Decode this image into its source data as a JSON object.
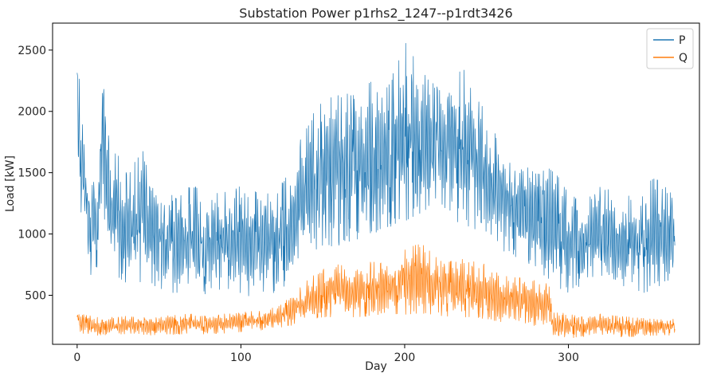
{
  "chart_data": {
    "type": "line",
    "title": "Substation Power p1rhs2_1247--p1rdt3426",
    "xlabel": "Day",
    "ylabel": "Load [kW]",
    "xlim": [
      -15,
      380
    ],
    "ylim": [
      100,
      2720
    ],
    "xticks": [
      0,
      100,
      200,
      300
    ],
    "yticks": [
      500,
      1000,
      1500,
      2000,
      2500
    ],
    "grid": false,
    "legend_position": "top-right",
    "series": [
      {
        "name": "P",
        "color": "#1f77b4",
        "envelope": {
          "x": [
            0,
            2,
            5,
            8,
            12,
            16,
            20,
            25,
            30,
            40,
            50,
            60,
            70,
            80,
            90,
            100,
            110,
            120,
            130,
            140,
            150,
            160,
            170,
            180,
            190,
            200,
            210,
            220,
            230,
            240,
            250,
            260,
            270,
            280,
            290,
            300,
            310,
            320,
            330,
            340,
            350,
            360,
            365
          ],
          "high": [
            2320,
            2300,
            1600,
            1480,
            1550,
            2430,
            1750,
            1650,
            1500,
            1700,
            1400,
            1300,
            1400,
            1350,
            1350,
            1400,
            1350,
            1350,
            1500,
            1950,
            2100,
            2150,
            2150,
            2250,
            2200,
            2580,
            2350,
            2200,
            2350,
            2350,
            1950,
            1700,
            1600,
            1500,
            1550,
            1350,
            1250,
            1450,
            1250,
            1350,
            1500,
            1400,
            1480
          ],
          "low": [
            1800,
            1200,
            1000,
            650,
            700,
            1200,
            700,
            650,
            600,
            600,
            550,
            500,
            550,
            500,
            550,
            500,
            450,
            520,
            600,
            800,
            900,
            900,
            950,
            1000,
            1050,
            1100,
            1150,
            1100,
            1100,
            1050,
            950,
            850,
            800,
            700,
            600,
            500,
            600,
            650,
            550,
            550,
            500,
            600,
            700
          ]
        }
      },
      {
        "name": "Q",
        "color": "#ff7f0e",
        "envelope": {
          "x": [
            0,
            2,
            5,
            10,
            20,
            30,
            40,
            50,
            60,
            70,
            80,
            90,
            100,
            110,
            120,
            130,
            140,
            150,
            160,
            170,
            180,
            190,
            200,
            210,
            220,
            230,
            240,
            250,
            260,
            270,
            280,
            288,
            290,
            300,
            310,
            320,
            330,
            340,
            350,
            360,
            365
          ],
          "high": [
            380,
            350,
            340,
            330,
            320,
            330,
            320,
            330,
            340,
            350,
            330,
            350,
            360,
            380,
            400,
            480,
            620,
            720,
            760,
            700,
            780,
            750,
            880,
            930,
            800,
            780,
            830,
            750,
            660,
            650,
            620,
            600,
            380,
            350,
            320,
            350,
            330,
            320,
            310,
            300,
            310
          ],
          "low": [
            280,
            200,
            180,
            170,
            180,
            180,
            170,
            180,
            180,
            190,
            180,
            190,
            200,
            210,
            230,
            250,
            300,
            320,
            320,
            320,
            330,
            340,
            340,
            350,
            330,
            320,
            320,
            300,
            280,
            270,
            250,
            200,
            180,
            150,
            160,
            170,
            160,
            160,
            170,
            170,
            180
          ]
        }
      }
    ]
  }
}
